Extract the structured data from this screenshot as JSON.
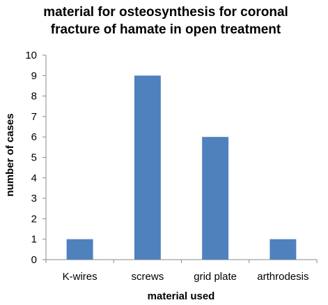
{
  "chart_data": {
    "type": "bar",
    "title_lines": [
      "material for osteosynthesis for coronal",
      "fracture of hamate in open treatment"
    ],
    "xlabel": "material used",
    "ylabel": "number of cases",
    "categories": [
      "K-wires",
      "screws",
      "grid plate",
      "arthrodesis"
    ],
    "values": [
      1,
      9,
      6,
      1
    ],
    "ylim": [
      0,
      10
    ],
    "yticks": [
      "0",
      "1",
      "2",
      "3",
      "4",
      "5",
      "6",
      "7",
      "8",
      "9",
      "10"
    ],
    "grid": false,
    "legend": "none",
    "bar_color": "#4f81bd",
    "axis_color": "#888888"
  }
}
